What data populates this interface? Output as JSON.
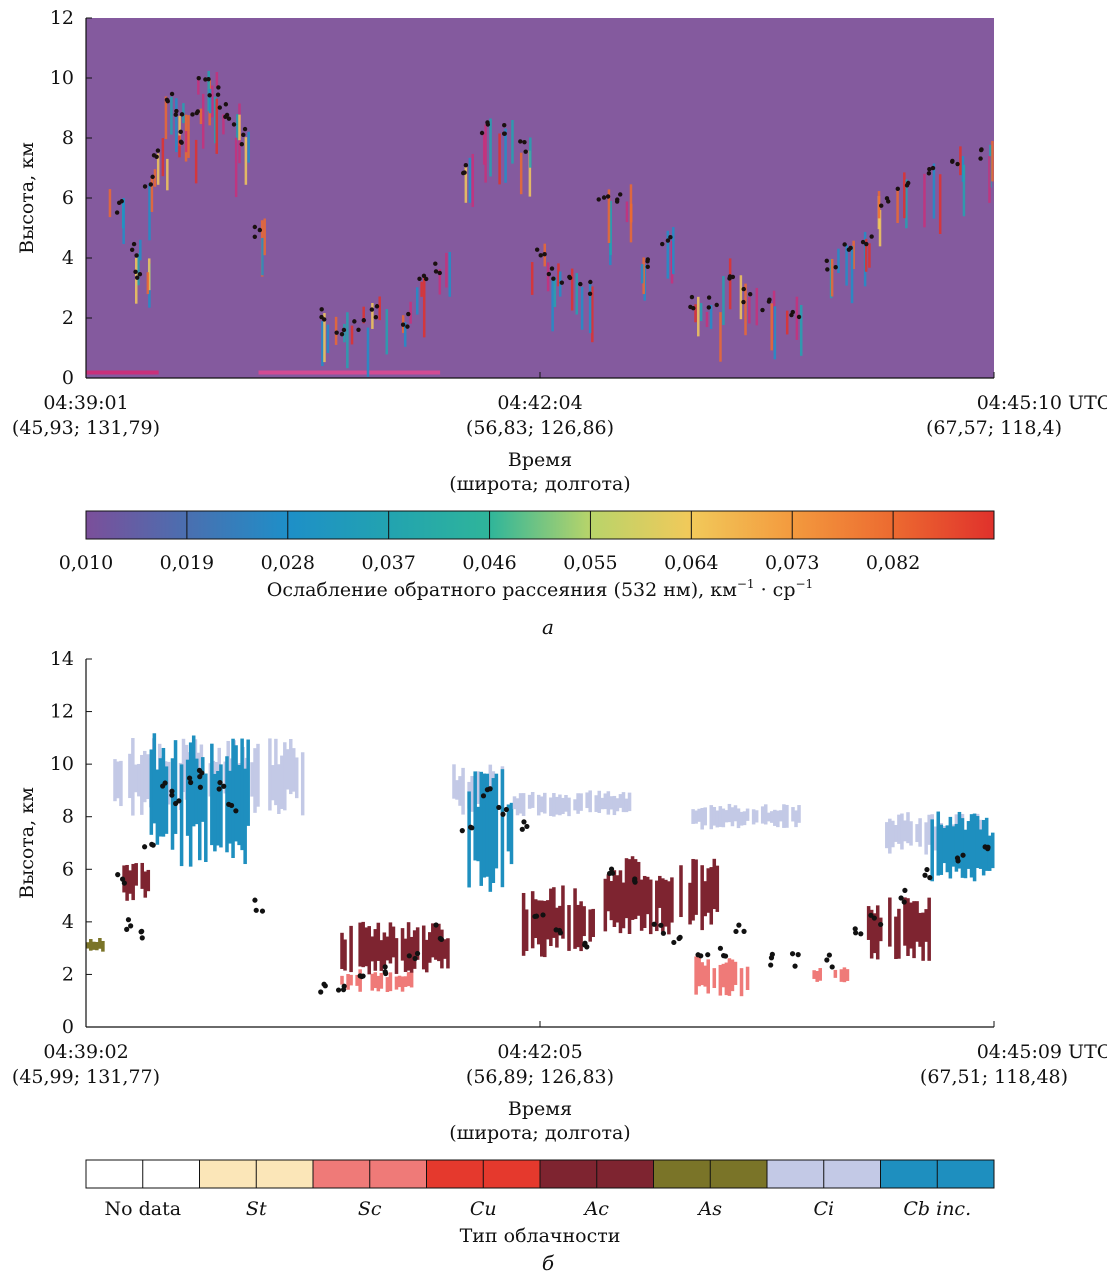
{
  "chart_data": [
    {
      "type": "heatmap",
      "panel_label": "а",
      "ylabel": "Высота, км",
      "ylim": [
        0,
        12
      ],
      "yticks": [
        "0",
        "2",
        "4",
        "6",
        "8",
        "10",
        "12"
      ],
      "x_ticks": [
        {
          "time": "04:39:01",
          "coords": "(45,93; 131,79)"
        },
        {
          "time": "04:42:04",
          "coords": "(56,83; 126,86)"
        },
        {
          "time": "04:45:10 UTC",
          "coords": "(67,57; 118,4)"
        }
      ],
      "xlabel": [
        "Время",
        "(широта; долгота)"
      ],
      "colorbar": {
        "label": "Ослабление обратного рассеяния (532 нм), км",
        "label_sup1": "−1",
        "label_mid": " · ср",
        "label_sup2": "−1",
        "ticks": [
          "0,010",
          "0,019",
          "0,028",
          "0,037",
          "0,046",
          "0,055",
          "0,064",
          "0,073",
          "0,082"
        ],
        "colors": [
          "#7b4f9a",
          "#4a6fb0",
          "#1e8fc8",
          "#22a3b0",
          "#2fb59a",
          "#b8d46a",
          "#f2c95a",
          "#f39a3e",
          "#ec6a30",
          "#e0312c"
        ]
      },
      "background_color": "#845a9e",
      "cloud_top_height_km": [
        [
          0.035,
          5.8
        ],
        [
          0.05,
          4.2
        ],
        [
          0.06,
          3.5
        ],
        [
          0.07,
          6.5
        ],
        [
          0.08,
          7.5
        ],
        [
          0.09,
          9.2
        ],
        [
          0.1,
          8.7
        ],
        [
          0.11,
          8.0
        ],
        [
          0.12,
          9.0
        ],
        [
          0.13,
          9.8
        ],
        [
          0.14,
          9.7
        ],
        [
          0.15,
          9.0
        ],
        [
          0.16,
          8.7
        ],
        [
          0.17,
          8.0
        ],
        [
          0.19,
          4.8
        ],
        [
          0.26,
          2.0
        ],
        [
          0.28,
          1.7
        ],
        [
          0.3,
          1.9
        ],
        [
          0.32,
          2.2
        ],
        [
          0.35,
          2.0
        ],
        [
          0.37,
          3.2
        ],
        [
          0.39,
          3.8
        ],
        [
          0.42,
          7.0
        ],
        [
          0.44,
          8.3
        ],
        [
          0.46,
          8.2
        ],
        [
          0.48,
          7.6
        ],
        [
          0.5,
          4.0
        ],
        [
          0.51,
          3.5
        ],
        [
          0.53,
          3.3
        ],
        [
          0.55,
          3.1
        ],
        [
          0.57,
          5.8
        ],
        [
          0.59,
          6.0
        ],
        [
          0.62,
          4.0
        ],
        [
          0.64,
          4.5
        ],
        [
          0.67,
          2.6
        ],
        [
          0.69,
          2.4
        ],
        [
          0.71,
          3.5
        ],
        [
          0.73,
          2.7
        ],
        [
          0.75,
          2.5
        ],
        [
          0.78,
          2.3
        ],
        [
          0.82,
          3.9
        ],
        [
          0.84,
          4.2
        ],
        [
          0.86,
          4.6
        ],
        [
          0.88,
          5.8
        ],
        [
          0.9,
          6.4
        ],
        [
          0.93,
          6.8
        ],
        [
          0.96,
          7.2
        ],
        [
          0.99,
          7.6
        ]
      ]
    },
    {
      "type": "heatmap",
      "panel_label": "б",
      "ylabel": "Высота, км",
      "ylim": [
        0,
        14
      ],
      "yticks": [
        "0",
        "2",
        "4",
        "6",
        "8",
        "10",
        "12",
        "14"
      ],
      "x_ticks": [
        {
          "time": "04:39:02",
          "coords": "(45,99; 131,77)"
        },
        {
          "time": "04:42:05",
          "coords": "(56,89; 126,83)"
        },
        {
          "time": "04:45:09 UTC",
          "coords": "(67,51; 118,48)"
        }
      ],
      "xlabel": [
        "Время",
        "(широта; долгота)"
      ],
      "legend_title": "Тип облачности",
      "categories": [
        {
          "label": "No data",
          "color": "#ffffff",
          "italic": false
        },
        {
          "label": "St",
          "color": "#fbe6b8",
          "italic": true
        },
        {
          "label": "Sc",
          "color": "#ef7a78",
          "italic": true
        },
        {
          "label": "Cu",
          "color": "#e5392d",
          "italic": true
        },
        {
          "label": "Ac",
          "color": "#7e2430",
          "italic": true
        },
        {
          "label": "As",
          "color": "#7a7428",
          "italic": true
        },
        {
          "label": "Ci",
          "color": "#c3c9e6",
          "italic": true
        },
        {
          "label": "Cb inc.",
          "color": "#1e8fbf",
          "italic": true
        }
      ],
      "cloud_top_height_km": [
        [
          0.04,
          5.5
        ],
        [
          0.05,
          4.0
        ],
        [
          0.06,
          3.6
        ],
        [
          0.07,
          7.0
        ],
        [
          0.09,
          9.1
        ],
        [
          0.1,
          8.6
        ],
        [
          0.12,
          9.3
        ],
        [
          0.13,
          9.6
        ],
        [
          0.15,
          9.0
        ],
        [
          0.16,
          8.4
        ],
        [
          0.19,
          4.6
        ],
        [
          0.26,
          1.5
        ],
        [
          0.28,
          1.6
        ],
        [
          0.3,
          1.8
        ],
        [
          0.33,
          2.0
        ],
        [
          0.36,
          2.5
        ],
        [
          0.39,
          3.6
        ],
        [
          0.42,
          7.5
        ],
        [
          0.44,
          8.8
        ],
        [
          0.46,
          8.3
        ],
        [
          0.48,
          7.7
        ],
        [
          0.5,
          4.0
        ],
        [
          0.52,
          3.4
        ],
        [
          0.55,
          3.3
        ],
        [
          0.58,
          5.9
        ],
        [
          0.6,
          5.5
        ],
        [
          0.63,
          3.8
        ],
        [
          0.65,
          3.3
        ],
        [
          0.68,
          2.5
        ],
        [
          0.7,
          2.8
        ],
        [
          0.72,
          3.6
        ],
        [
          0.75,
          2.6
        ],
        [
          0.78,
          2.6
        ],
        [
          0.82,
          2.5
        ],
        [
          0.85,
          3.5
        ],
        [
          0.87,
          4.2
        ],
        [
          0.9,
          5.0
        ],
        [
          0.93,
          5.9
        ],
        [
          0.96,
          6.5
        ],
        [
          0.99,
          7.0
        ]
      ],
      "cloud_regions": [
        {
          "type": "Ci",
          "x0": 0.03,
          "x1": 0.24,
          "ymin": 8.0,
          "ymax": 11.0
        },
        {
          "type": "Cb inc.",
          "x0": 0.07,
          "x1": 0.18,
          "ymin": 6.0,
          "ymax": 11.2
        },
        {
          "type": "Ac",
          "x0": 0.04,
          "x1": 0.07,
          "ymin": 4.8,
          "ymax": 6.5
        },
        {
          "type": "As",
          "x0": 0.0,
          "x1": 0.02,
          "ymin": 2.8,
          "ymax": 3.4
        },
        {
          "type": "Sc",
          "x0": 0.28,
          "x1": 0.36,
          "ymin": 1.3,
          "ymax": 2.2
        },
        {
          "type": "Ac",
          "x0": 0.28,
          "x1": 0.4,
          "ymin": 2.0,
          "ymax": 4.0
        },
        {
          "type": "Ci",
          "x0": 0.4,
          "x1": 0.46,
          "ymin": 8.0,
          "ymax": 10.0
        },
        {
          "type": "Cb inc.",
          "x0": 0.42,
          "x1": 0.47,
          "ymin": 5.0,
          "ymax": 10.0
        },
        {
          "type": "Ci",
          "x0": 0.47,
          "x1": 0.6,
          "ymin": 8.0,
          "ymax": 9.0
        },
        {
          "type": "Ac",
          "x0": 0.48,
          "x1": 0.56,
          "ymin": 2.5,
          "ymax": 5.5
        },
        {
          "type": "Ac",
          "x0": 0.57,
          "x1": 0.7,
          "ymin": 3.5,
          "ymax": 6.5
        },
        {
          "type": "Ci",
          "x0": 0.66,
          "x1": 0.8,
          "ymin": 7.5,
          "ymax": 8.5
        },
        {
          "type": "Sc",
          "x0": 0.67,
          "x1": 0.73,
          "ymin": 1.0,
          "ymax": 2.8
        },
        {
          "type": "Sc",
          "x0": 0.8,
          "x1": 0.84,
          "ymin": 1.7,
          "ymax": 2.3
        },
        {
          "type": "Ac",
          "x0": 0.86,
          "x1": 0.93,
          "ymin": 2.5,
          "ymax": 5.0
        },
        {
          "type": "Ci",
          "x0": 0.88,
          "x1": 0.99,
          "ymin": 6.5,
          "ymax": 8.2
        },
        {
          "type": "Cb inc.",
          "x0": 0.93,
          "x1": 1.0,
          "ymin": 5.5,
          "ymax": 8.2
        }
      ]
    }
  ]
}
